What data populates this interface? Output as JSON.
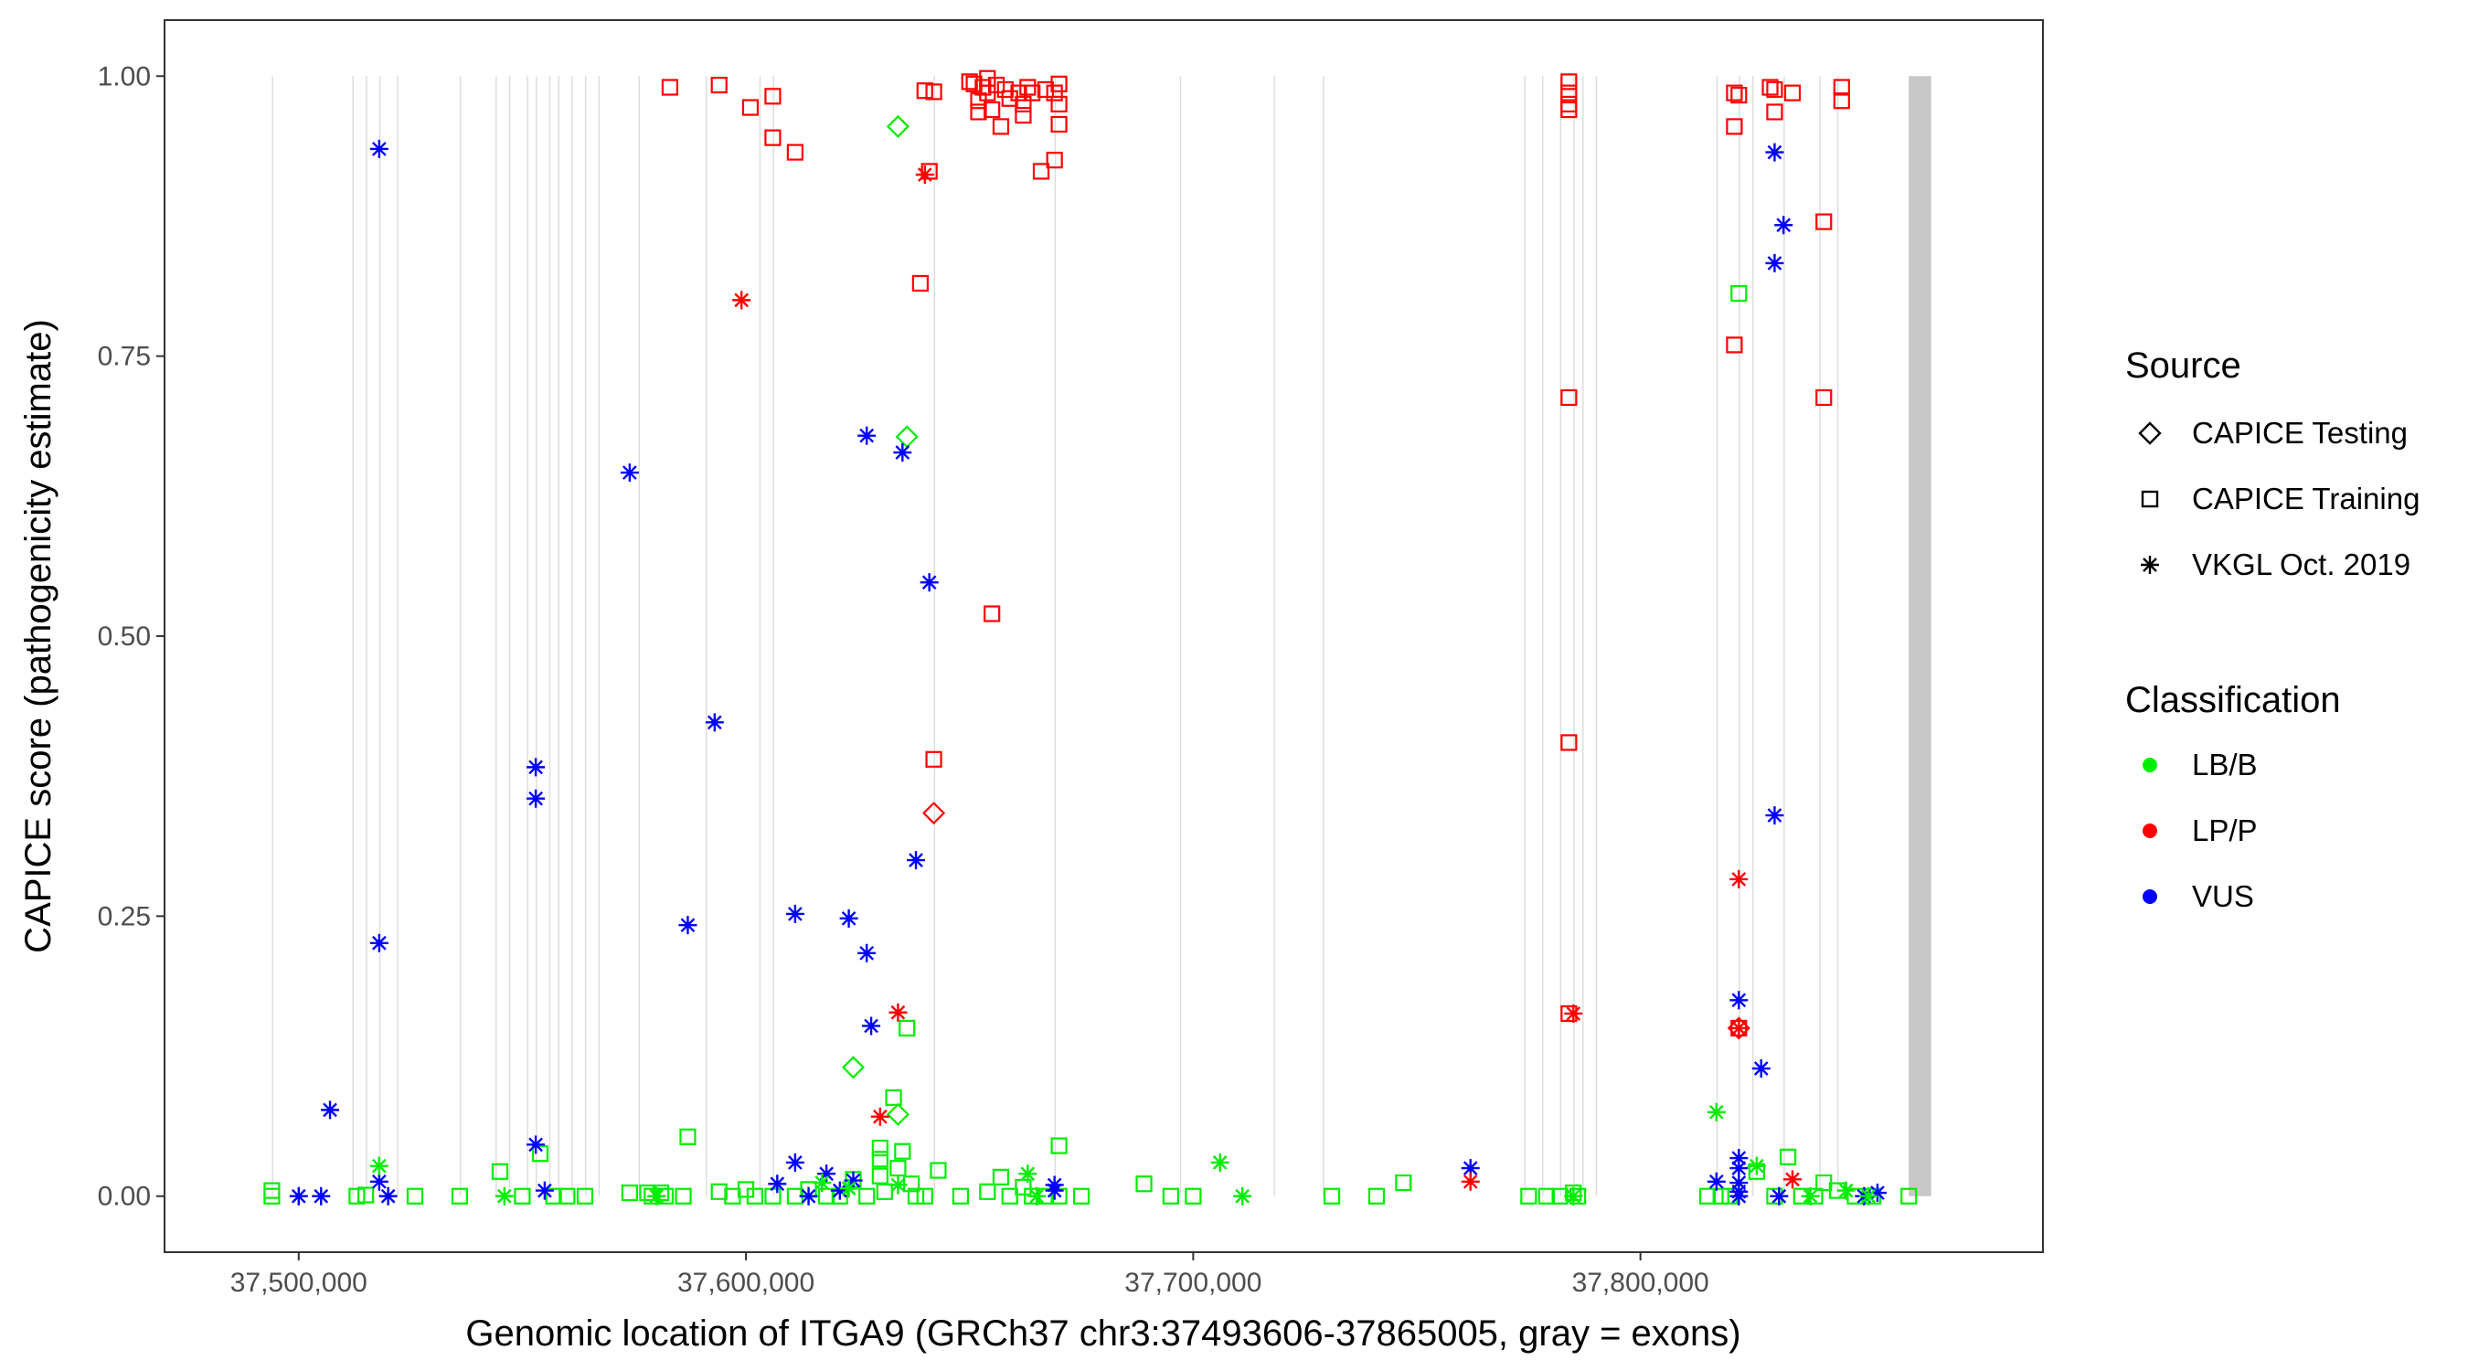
{
  "chart_data": {
    "type": "scatter",
    "title": "",
    "xlabel": "Genomic location of ITGA9 (GRCh37 chr3:37493606-37865005, gray = exons)",
    "ylabel": "CAPICE score (pathogenicity estimate)",
    "xlim": [
      37470000,
      37890000
    ],
    "ylim": [
      -0.05,
      1.05
    ],
    "xticks": [
      37500000,
      37600000,
      37700000,
      37800000
    ],
    "xtick_labels": [
      "37,500,000",
      "37,600,000",
      "37,700,000",
      "37,800,000"
    ],
    "yticks": [
      0,
      0.25,
      0.5,
      0.75,
      1
    ],
    "ytick_labels": [
      "0.00",
      "0.25",
      "0.50",
      "0.75",
      "1.00"
    ],
    "exons": [
      {
        "start": 37494000,
        "end": 37494300
      },
      {
        "start": 37512000,
        "end": 37512300
      },
      {
        "start": 37515000,
        "end": 37515300
      },
      {
        "start": 37518000,
        "end": 37518300
      },
      {
        "start": 37522000,
        "end": 37522300
      },
      {
        "start": 37536000,
        "end": 37536300
      },
      {
        "start": 37544000,
        "end": 37544300
      },
      {
        "start": 37547000,
        "end": 37547300
      },
      {
        "start": 37551000,
        "end": 37551300
      },
      {
        "start": 37553000,
        "end": 37553300
      },
      {
        "start": 37556000,
        "end": 37556300
      },
      {
        "start": 37558000,
        "end": 37558300
      },
      {
        "start": 37561000,
        "end": 37561300
      },
      {
        "start": 37564000,
        "end": 37564300
      },
      {
        "start": 37567000,
        "end": 37567300
      },
      {
        "start": 37576000,
        "end": 37576300
      },
      {
        "start": 37591000,
        "end": 37591300
      },
      {
        "start": 37603000,
        "end": 37603300
      },
      {
        "start": 37606000,
        "end": 37606300
      },
      {
        "start": 37642000,
        "end": 37642300
      },
      {
        "start": 37669000,
        "end": 37669300
      },
      {
        "start": 37697000,
        "end": 37697300
      },
      {
        "start": 37718000,
        "end": 37718300
      },
      {
        "start": 37729000,
        "end": 37729300
      },
      {
        "start": 37774000,
        "end": 37774300
      },
      {
        "start": 37778000,
        "end": 37778300
      },
      {
        "start": 37782000,
        "end": 37782300
      },
      {
        "start": 37785000,
        "end": 37785300
      },
      {
        "start": 37787000,
        "end": 37787300
      },
      {
        "start": 37790000,
        "end": 37790300
      },
      {
        "start": 37817000,
        "end": 37817300
      },
      {
        "start": 37822000,
        "end": 37822300
      },
      {
        "start": 37825000,
        "end": 37825300
      },
      {
        "start": 37832000,
        "end": 37832300
      },
      {
        "start": 37840000,
        "end": 37840300
      },
      {
        "start": 37844000,
        "end": 37844300
      },
      {
        "start": 37860000,
        "end": 37865005
      }
    ],
    "legend": {
      "source_title": "Source",
      "source_items": [
        {
          "label": "CAPICE Testing",
          "shape": "diamond"
        },
        {
          "label": "CAPICE Training",
          "shape": "square"
        },
        {
          "label": "VKGL Oct. 2019",
          "shape": "star"
        }
      ],
      "class_title": "Classification",
      "class_items": [
        {
          "label": "LB/B",
          "color": "#00ee00"
        },
        {
          "label": "LP/P",
          "color": "#ff0000"
        },
        {
          "label": "VUS",
          "color": "#0000ff"
        }
      ]
    },
    "colors": {
      "LB/B": "#00ee00",
      "LP/P": "#ff0000",
      "VUS": "#0000ff"
    },
    "series": [
      {
        "name": "CAPICE Training / LP/P",
        "source": "CAPICE Training",
        "class": "LP/P",
        "shape": "square",
        "points": [
          [
            37583000,
            0.99
          ],
          [
            37594000,
            0.992
          ],
          [
            37601000,
            0.972
          ],
          [
            37606000,
            0.982
          ],
          [
            37606000,
            0.945
          ],
          [
            37611000,
            0.932
          ],
          [
            37640000,
            0.987
          ],
          [
            37642000,
            0.986
          ],
          [
            37641000,
            0.915
          ],
          [
            37639000,
            0.815
          ],
          [
            37642000,
            0.39
          ],
          [
            37655000,
            0.52
          ],
          [
            37650000,
            0.995
          ],
          [
            37651000,
            0.993
          ],
          [
            37652000,
            0.978
          ],
          [
            37652000,
            0.968
          ],
          [
            37653000,
            0.99
          ],
          [
            37654000,
            0.998
          ],
          [
            37654000,
            0.985
          ],
          [
            37655000,
            0.97
          ],
          [
            37656000,
            0.992
          ],
          [
            37657000,
            0.955
          ],
          [
            37658000,
            0.988
          ],
          [
            37659000,
            0.98
          ],
          [
            37661000,
            0.985
          ],
          [
            37662000,
            0.975
          ],
          [
            37662000,
            0.965
          ],
          [
            37663000,
            0.99
          ],
          [
            37664000,
            0.985
          ],
          [
            37666000,
            0.915
          ],
          [
            37667000,
            0.988
          ],
          [
            37669000,
            0.925
          ],
          [
            37669000,
            0.985
          ],
          [
            37670000,
            0.993
          ],
          [
            37670000,
            0.975
          ],
          [
            37670000,
            0.957
          ],
          [
            37784000,
            0.995
          ],
          [
            37784000,
            0.985
          ],
          [
            37784000,
            0.975
          ],
          [
            37784000,
            0.97
          ],
          [
            37784000,
            0.713
          ],
          [
            37784000,
            0.405
          ],
          [
            37784000,
            0.163
          ],
          [
            37821000,
            0.985
          ],
          [
            37822000,
            0.983
          ],
          [
            37821000,
            0.955
          ],
          [
            37821000,
            0.76
          ],
          [
            37822000,
            0.15
          ],
          [
            37829000,
            0.99
          ],
          [
            37830000,
            0.988
          ],
          [
            37830000,
            0.968
          ],
          [
            37834000,
            0.985
          ],
          [
            37841000,
            0.87
          ],
          [
            37841000,
            0.713
          ],
          [
            37845000,
            0.99
          ],
          [
            37845000,
            0.978
          ]
        ]
      },
      {
        "name": "CAPICE Training / LB/B",
        "source": "CAPICE Training",
        "class": "LB/B",
        "shape": "square",
        "points": [
          [
            37494000,
            0.005
          ],
          [
            37494000,
            0.0
          ],
          [
            37513000,
            0.0
          ],
          [
            37515000,
            0.001
          ],
          [
            37526000,
            0.0
          ],
          [
            37536000,
            0.0
          ],
          [
            37545000,
            0.022
          ],
          [
            37550000,
            0.0
          ],
          [
            37554000,
            0.038
          ],
          [
            37557000,
            0.0
          ],
          [
            37560000,
            0.0
          ],
          [
            37564000,
            0.0
          ],
          [
            37574000,
            0.003
          ],
          [
            37578000,
            0.003
          ],
          [
            37579000,
            0.0
          ],
          [
            37581000,
            0.003
          ],
          [
            37582000,
            0.0
          ],
          [
            37586000,
            0.0
          ],
          [
            37587000,
            0.053
          ],
          [
            37594000,
            0.004
          ],
          [
            37597000,
            0.0
          ],
          [
            37600000,
            0.006
          ],
          [
            37602000,
            0.0
          ],
          [
            37606000,
            0.0
          ],
          [
            37611000,
            0.0
          ],
          [
            37614000,
            0.006
          ],
          [
            37618000,
            0.0
          ],
          [
            37621000,
            0.0
          ],
          [
            37624000,
            0.015
          ],
          [
            37627000,
            0.0
          ],
          [
            37630000,
            0.043
          ],
          [
            37630000,
            0.033
          ],
          [
            37630000,
            0.018
          ],
          [
            37631000,
            0.004
          ],
          [
            37633000,
            0.088
          ],
          [
            37634000,
            0.025
          ],
          [
            37635000,
            0.04
          ],
          [
            37636000,
            0.15
          ],
          [
            37637000,
            0.011
          ],
          [
            37638000,
            0.0
          ],
          [
            37640000,
            0.0
          ],
          [
            37643000,
            0.023
          ],
          [
            37648000,
            0.0
          ],
          [
            37654000,
            0.004
          ],
          [
            37657000,
            0.017
          ],
          [
            37659000,
            0.0
          ],
          [
            37662000,
            0.008
          ],
          [
            37664000,
            0.0
          ],
          [
            37667000,
            0.0
          ],
          [
            37670000,
            0.045
          ],
          [
            37670000,
            0.0
          ],
          [
            37675000,
            0.0
          ],
          [
            37689000,
            0.011
          ],
          [
            37695000,
            0.0
          ],
          [
            37700000,
            0.0
          ],
          [
            37731000,
            0.0
          ],
          [
            37741000,
            0.0
          ],
          [
            37747000,
            0.012
          ],
          [
            37775000,
            0.0
          ],
          [
            37779000,
            0.0
          ],
          [
            37782000,
            0.0
          ],
          [
            37785000,
            0.003
          ],
          [
            37786000,
            0.0
          ],
          [
            37815000,
            0.0
          ],
          [
            37818000,
            0.0
          ],
          [
            37820000,
            0.0
          ],
          [
            37822000,
            0.806
          ],
          [
            37826000,
            0.022
          ],
          [
            37830000,
            0.0
          ],
          [
            37833000,
            0.035
          ],
          [
            37836000,
            0.0
          ],
          [
            37839000,
            0.0
          ],
          [
            37841000,
            0.012
          ],
          [
            37844000,
            0.005
          ],
          [
            37848000,
            0.0
          ],
          [
            37852000,
            0.0
          ],
          [
            37860000,
            0.0
          ]
        ]
      },
      {
        "name": "CAPICE Testing / LB/B",
        "source": "CAPICE Testing",
        "class": "LB/B",
        "shape": "diamond",
        "points": [
          [
            37634000,
            0.955
          ],
          [
            37636000,
            0.678
          ],
          [
            37634000,
            0.073
          ],
          [
            37624000,
            0.115
          ]
        ]
      },
      {
        "name": "CAPICE Testing / LP/P",
        "source": "CAPICE Testing",
        "class": "LP/P",
        "shape": "diamond",
        "points": [
          [
            37642000,
            0.342
          ],
          [
            37822000,
            0.15
          ]
        ]
      },
      {
        "name": "VKGL Oct. 2019 / VUS",
        "source": "VKGL Oct. 2019",
        "class": "VUS",
        "shape": "star",
        "points": [
          [
            37518000,
            0.935
          ],
          [
            37518000,
            0.226
          ],
          [
            37507000,
            0.077
          ],
          [
            37518000,
            0.013
          ],
          [
            37520000,
            0.0
          ],
          [
            37500000,
            0.0
          ],
          [
            37505000,
            0.0
          ],
          [
            37553000,
            0.383
          ],
          [
            37553000,
            0.355
          ],
          [
            37553000,
            0.046
          ],
          [
            37555000,
            0.005
          ],
          [
            37574000,
            0.646
          ],
          [
            37587000,
            0.242
          ],
          [
            37593000,
            0.423
          ],
          [
            37607000,
            0.011
          ],
          [
            37611000,
            0.252
          ],
          [
            37611000,
            0.03
          ],
          [
            37614000,
            0.0
          ],
          [
            37618000,
            0.02
          ],
          [
            37621000,
            0.005
          ],
          [
            37623000,
            0.248
          ],
          [
            37624000,
            0.014
          ],
          [
            37627000,
            0.217
          ],
          [
            37627000,
            0.679
          ],
          [
            37628000,
            0.152
          ],
          [
            37635000,
            0.664
          ],
          [
            37638000,
            0.3
          ],
          [
            37641000,
            0.548
          ],
          [
            37669000,
            0.01
          ],
          [
            37669000,
            0.005
          ],
          [
            37762000,
            0.025
          ],
          [
            37817000,
            0.013
          ],
          [
            37822000,
            0.175
          ],
          [
            37822000,
            0.034
          ],
          [
            37822000,
            0.025
          ],
          [
            37822000,
            0.012
          ],
          [
            37822000,
            0.004
          ],
          [
            37822000,
            0.0
          ],
          [
            37827000,
            0.114
          ],
          [
            37830000,
            0.932
          ],
          [
            37830000,
            0.833
          ],
          [
            37830000,
            0.34
          ],
          [
            37832000,
            0.867
          ],
          [
            37831000,
            0.0
          ],
          [
            37850000,
            0.0
          ],
          [
            37853000,
            0.003
          ]
        ]
      },
      {
        "name": "VKGL Oct. 2019 / LP/P",
        "source": "VKGL Oct. 2019",
        "class": "LP/P",
        "shape": "star",
        "points": [
          [
            37640000,
            0.912
          ],
          [
            37599000,
            0.8
          ],
          [
            37634000,
            0.164
          ],
          [
            37630000,
            0.071
          ],
          [
            37762000,
            0.013
          ],
          [
            37785000,
            0.163
          ],
          [
            37822000,
            0.283
          ],
          [
            37822000,
            0.15
          ],
          [
            37834000,
            0.015
          ]
        ]
      },
      {
        "name": "VKGL Oct. 2019 / LB/B",
        "source": "VKGL Oct. 2019",
        "class": "LB/B",
        "shape": "star",
        "points": [
          [
            37518000,
            0.027
          ],
          [
            37546000,
            0.0
          ],
          [
            37580000,
            0.0
          ],
          [
            37617000,
            0.012
          ],
          [
            37623000,
            0.007
          ],
          [
            37634000,
            0.01
          ],
          [
            37663000,
            0.02
          ],
          [
            37665000,
            0.0
          ],
          [
            37706000,
            0.03
          ],
          [
            37711000,
            0.0
          ],
          [
            37785000,
            0.0
          ],
          [
            37817000,
            0.075
          ],
          [
            37826000,
            0.027
          ],
          [
            37838000,
            0.0
          ],
          [
            37846000,
            0.005
          ],
          [
            37851000,
            0.0
          ]
        ]
      }
    ]
  }
}
